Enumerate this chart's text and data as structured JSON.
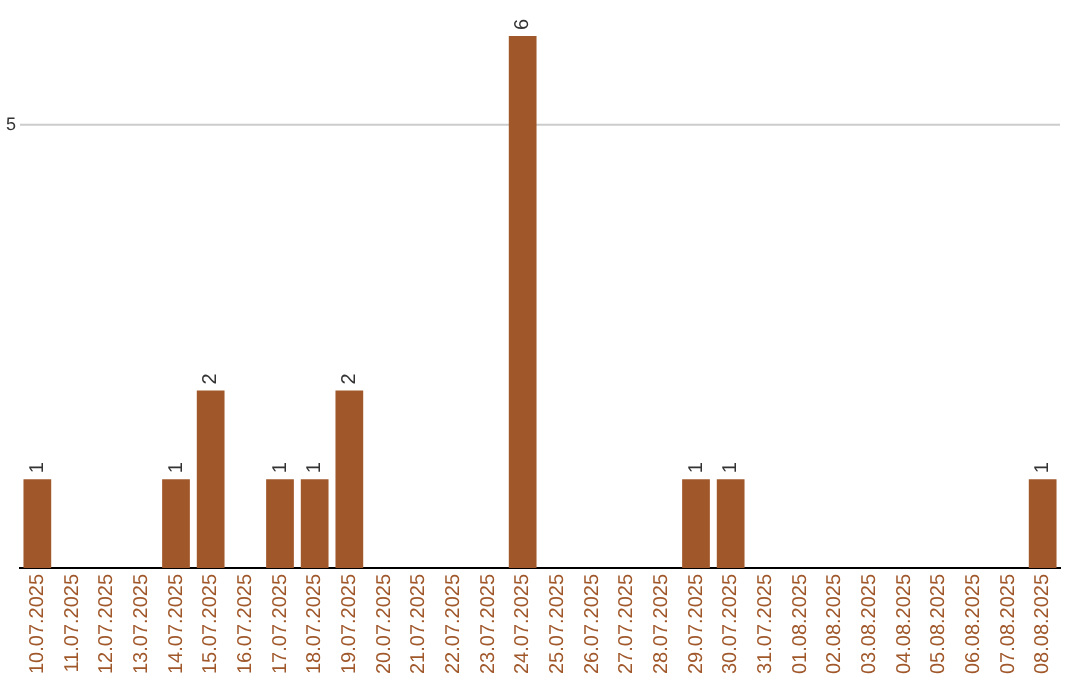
{
  "chart_data": {
    "type": "bar",
    "categories": [
      "10.07.2025",
      "11.07.2025",
      "12.07.2025",
      "13.07.2025",
      "14.07.2025",
      "15.07.2025",
      "16.07.2025",
      "17.07.2025",
      "18.07.2025",
      "19.07.2025",
      "20.07.2025",
      "21.07.2025",
      "22.07.2025",
      "23.07.2025",
      "24.07.2025",
      "25.07.2025",
      "26.07.2025",
      "27.07.2025",
      "28.07.2025",
      "29.07.2025",
      "30.07.2025",
      "31.07.2025",
      "01.08.2025",
      "02.08.2025",
      "03.08.2025",
      "04.08.2025",
      "05.08.2025",
      "06.08.2025",
      "07.08.2025",
      "08.08.2025"
    ],
    "values": [
      1,
      null,
      null,
      null,
      1,
      2,
      null,
      1,
      1,
      2,
      null,
      null,
      null,
      null,
      6,
      null,
      null,
      null,
      null,
      1,
      1,
      null,
      null,
      null,
      null,
      null,
      null,
      null,
      null,
      1
    ],
    "color": "#a0582b",
    "ref_lines": [
      {
        "axis": "y",
        "value": 5,
        "label": "5",
        "color": "#cccccc"
      }
    ],
    "data_labels": true,
    "legend": false
  }
}
